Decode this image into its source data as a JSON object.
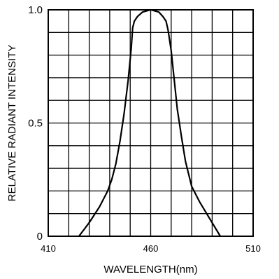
{
  "chart_data": {
    "type": "line",
    "title": "",
    "xlabel": "WAVELENGTH(nm)",
    "ylabel": "RELATIVE RADIANT INTENSITY",
    "xlim": [
      410,
      510
    ],
    "ylim": [
      0,
      1.0
    ],
    "x_ticks": [
      "410",
      "460",
      "510"
    ],
    "y_ticks": [
      "0",
      "0.5",
      "1.0"
    ],
    "grid": true,
    "grid_divisions": {
      "x": 10,
      "y": 10
    },
    "line_color": "#000000",
    "series": [
      {
        "points": [
          [
            425,
            0.0
          ],
          [
            430,
            0.06
          ],
          [
            435,
            0.13
          ],
          [
            439,
            0.2
          ],
          [
            441,
            0.25
          ],
          [
            443,
            0.32
          ],
          [
            445,
            0.42
          ],
          [
            447,
            0.54
          ],
          [
            449,
            0.69
          ],
          [
            450.5,
            0.83
          ],
          [
            451.2,
            0.92
          ],
          [
            452,
            0.95
          ],
          [
            453.5,
            0.97
          ],
          [
            456,
            0.99
          ],
          [
            460,
            1.0
          ],
          [
            464,
            0.99
          ],
          [
            466,
            0.97
          ],
          [
            467.5,
            0.95
          ],
          [
            468.5,
            0.91
          ],
          [
            470,
            0.82
          ],
          [
            471.5,
            0.69
          ],
          [
            473,
            0.56
          ],
          [
            475,
            0.44
          ],
          [
            477,
            0.33
          ],
          [
            480,
            0.22
          ],
          [
            484,
            0.15
          ],
          [
            488,
            0.09
          ],
          [
            494,
            0.0
          ]
        ]
      }
    ]
  }
}
